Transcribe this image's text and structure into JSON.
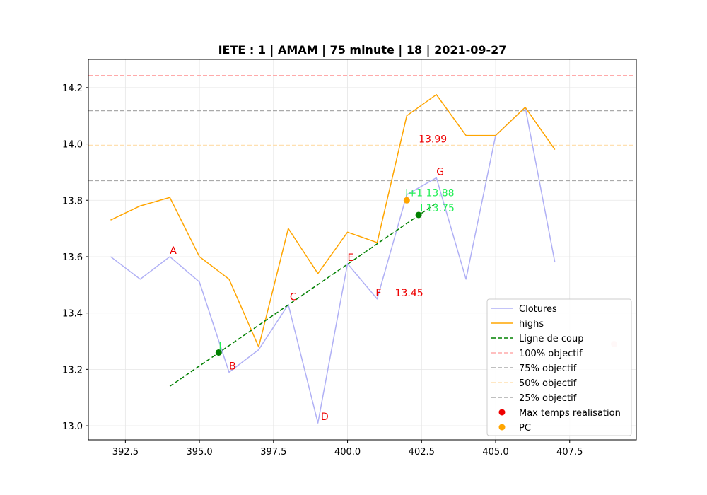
{
  "chart_data": {
    "type": "line",
    "title": "IETE : 1 | AMAM | 75 minute | 18 | 2021-09-27",
    "xlabel": "",
    "ylabel": "",
    "xlim": [
      391.25,
      409.75
    ],
    "ylim": [
      12.95,
      14.3
    ],
    "x_ticks": [
      392.5,
      395.0,
      397.5,
      400.0,
      402.5,
      405.0,
      407.5
    ],
    "x_tick_labels": [
      "392.5",
      "395.0",
      "397.5",
      "400.0",
      "402.5",
      "405.0",
      "407.5"
    ],
    "y_ticks": [
      13.0,
      13.2,
      13.4,
      13.6,
      13.8,
      14.0,
      14.2
    ],
    "y_tick_labels": [
      "13.0",
      "13.2",
      "13.4",
      "13.6",
      "13.8",
      "14.0",
      "14.2"
    ],
    "grid": true,
    "legend_position": "bottom-right",
    "series": [
      {
        "name": "Clotures",
        "color": "#b0b0f5",
        "style": "solid",
        "x": [
          392,
          393,
          394,
          395,
          396,
          397,
          398,
          399,
          400,
          401,
          402,
          403,
          404,
          405,
          406,
          407
        ],
        "y": [
          13.6,
          13.52,
          13.6,
          13.51,
          13.19,
          13.27,
          13.43,
          13.01,
          13.575,
          13.45,
          13.82,
          13.88,
          13.52,
          14.03,
          14.13,
          13.58
        ]
      },
      {
        "name": "highs",
        "color": "#ffa500",
        "style": "solid",
        "x": [
          392,
          393,
          394,
          395,
          396,
          397,
          398,
          399,
          400,
          401,
          402,
          403,
          404,
          405,
          406,
          407
        ],
        "y": [
          13.73,
          13.78,
          13.81,
          13.6,
          13.52,
          13.28,
          13.7,
          13.54,
          13.687,
          13.65,
          14.1,
          14.175,
          14.03,
          14.03,
          14.13,
          13.98
        ]
      },
      {
        "name": "Ligne de coup",
        "color": "#008000",
        "style": "dashed",
        "x": [
          394,
          403
        ],
        "y": [
          13.14,
          13.79
        ]
      }
    ],
    "hlines": [
      {
        "name": "100% objectif",
        "y": 14.243,
        "color": "#ffaaaa"
      },
      {
        "name": "75% objectif",
        "y": 14.118,
        "color": "#aaaaaa"
      },
      {
        "name": "50% objectif",
        "y": 13.995,
        "color": "#ffe0b0"
      },
      {
        "name": "25% objectif",
        "y": 13.87,
        "color": "#aaaaaa"
      }
    ],
    "scatter": [
      {
        "name": "Max temps realisation",
        "x": 409,
        "y": 13.29,
        "color": "#ffcccc",
        "legend_color": "#ee0000"
      },
      {
        "name": "PC",
        "x": 402,
        "y": 13.8,
        "color": "#ffa500",
        "legend_color": "#ffa500"
      }
    ],
    "markers": [
      {
        "x": 395.65,
        "y": 13.26,
        "color": "#008000"
      },
      {
        "x": 402.4,
        "y": 13.748,
        "color": "#008000"
      }
    ],
    "annotations": [
      {
        "text": "A",
        "x": 394.0,
        "y": 13.61,
        "color": "#ee0000"
      },
      {
        "text": "B",
        "x": 396.0,
        "y": 13.2,
        "color": "#ee0000"
      },
      {
        "text": "C",
        "x": 398.05,
        "y": 13.445,
        "color": "#ee0000"
      },
      {
        "text": "D",
        "x": 399.1,
        "y": 13.02,
        "color": "#ee0000"
      },
      {
        "text": "E",
        "x": 400.0,
        "y": 13.585,
        "color": "#ee0000"
      },
      {
        "text": "F",
        "x": 400.95,
        "y": 13.46,
        "color": "#ee0000"
      },
      {
        "text": "G",
        "x": 403.0,
        "y": 13.89,
        "color": "#ee0000"
      },
      {
        "text": "13.45",
        "x": 401.6,
        "y": 13.46,
        "color": "#ee0000"
      },
      {
        "text": "13.99",
        "x": 402.4,
        "y": 14.005,
        "color": "#ee0000"
      },
      {
        "text": "I+1 13.88",
        "x": 401.95,
        "y": 13.815,
        "color": "#22ee55"
      },
      {
        "text": "I 13.75",
        "x": 402.45,
        "y": 13.76,
        "color": "#22ee55"
      },
      {
        "text": "I",
        "x": 395.65,
        "y": 13.27,
        "color": "#22ee55"
      }
    ]
  }
}
